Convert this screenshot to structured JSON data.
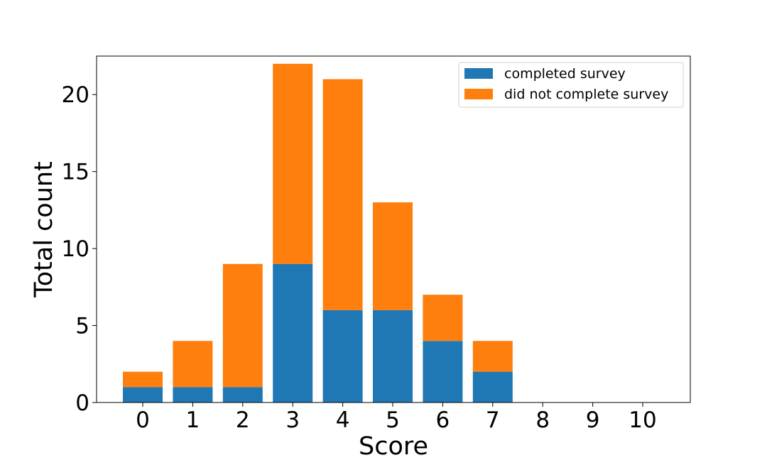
{
  "chart_data": {
    "type": "bar",
    "stacked": true,
    "categories": [
      "0",
      "1",
      "2",
      "3",
      "4",
      "5",
      "6",
      "7",
      "8",
      "9",
      "10"
    ],
    "series": [
      {
        "name": "completed survey",
        "color": "#1f77b4",
        "values": [
          1,
          1,
          1,
          9,
          6,
          6,
          4,
          2,
          0,
          0,
          0
        ]
      },
      {
        "name": "did not complete survey",
        "color": "#ff7f0e",
        "values": [
          1,
          3,
          8,
          13,
          15,
          7,
          3,
          2,
          0,
          0,
          0
        ]
      }
    ],
    "xlabel": "Score",
    "ylabel": "Total count",
    "ylim": [
      0,
      22.5
    ],
    "yticks": [
      "0",
      "5",
      "10",
      "15",
      "20"
    ],
    "grid": false,
    "legend_position": "top-right"
  }
}
